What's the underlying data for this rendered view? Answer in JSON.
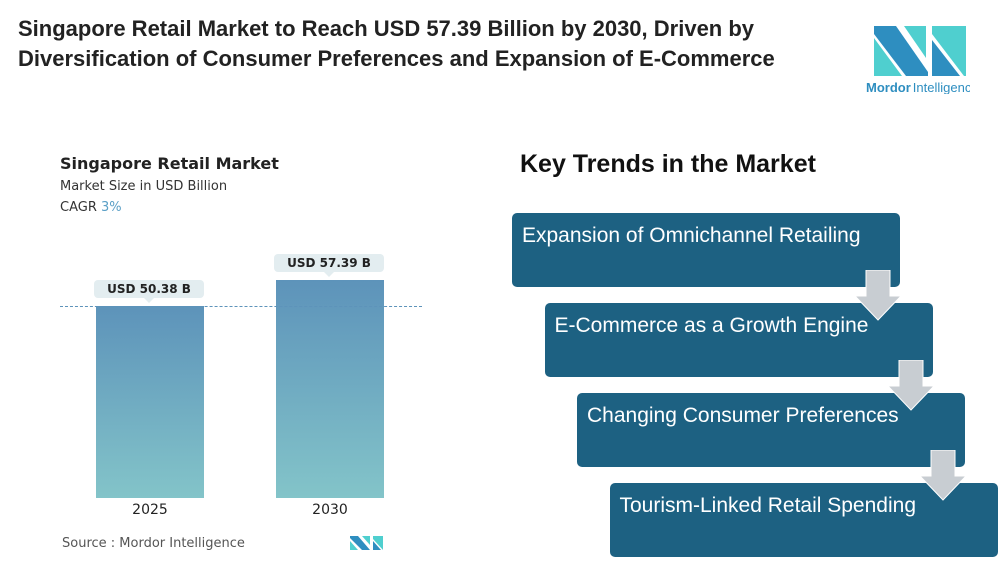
{
  "title": "Singapore Retail Market to Reach USD 57.39 Billion by 2030, Driven by Diversification of Consumer Preferences and Expansion of E-Commerce",
  "logo": {
    "text_bold": "Mordor",
    "text_light": "Intelligence",
    "colors": [
      "#2e8ec0",
      "#4fcfcf"
    ]
  },
  "chart_data": {
    "type": "bar",
    "title": "Singapore Retail Market",
    "subtitle": "Market Size in USD Billion",
    "cagr_label": "CAGR",
    "cagr_value": "3%",
    "categories": [
      "2025",
      "2030"
    ],
    "values": [
      50.38,
      57.39
    ],
    "data_labels": [
      "USD 50.38 B",
      "USD 57.39 B"
    ],
    "reference_line": 50.38,
    "source": "Source :  Mordor Intelligence"
  },
  "trends": {
    "heading": "Key Trends in the Market",
    "items": [
      "Expansion of Omnichannel Retailing",
      "E-Commerce as a Growth Engine",
      "Changing Consumer Preferences",
      "Tourism-Linked Retail Spending"
    ],
    "box_color": "#1d6182"
  }
}
